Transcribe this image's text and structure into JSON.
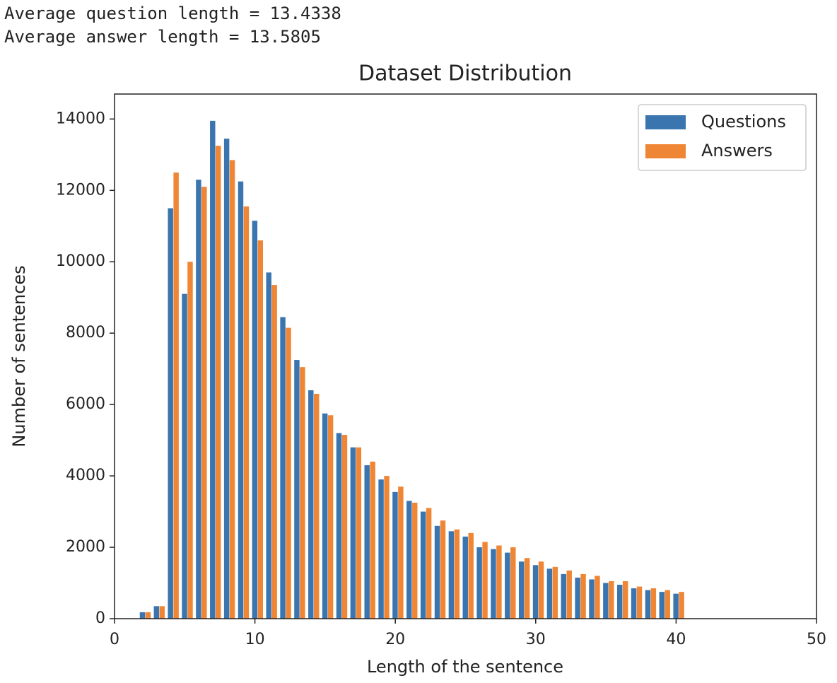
{
  "chart_data": {
    "type": "histogram",
    "annotations": [
      "Average question length = 13.4338",
      "Average answer length = 13.5805"
    ],
    "title": "Dataset Distribution",
    "xlabel": "Length of the sentence",
    "ylabel": "Number of sentences",
    "bins": [
      1.7,
      2.7,
      3.7,
      4.7,
      5.7,
      6.7,
      7.7,
      8.7,
      9.7,
      10.7,
      11.7,
      12.7,
      13.7,
      14.7,
      15.7,
      16.7,
      17.7,
      18.7,
      19.7,
      20.7,
      21.7,
      22.7,
      23.7,
      24.7,
      25.7,
      26.7,
      27.7,
      28.7,
      29.7,
      30.7,
      31.7,
      32.7,
      33.7,
      34.7,
      35.7,
      36.7,
      37.7,
      38.7,
      39.7,
      40.7
    ],
    "series": [
      {
        "name": "Questions",
        "color": "#3b75af",
        "values": [
          180,
          350,
          11500,
          9100,
          12300,
          13950,
          13450,
          12250,
          11150,
          9700,
          8450,
          7250,
          6400,
          5750,
          5200,
          4800,
          4300,
          3900,
          3550,
          3300,
          3000,
          2600,
          2450,
          2300,
          2000,
          1950,
          1850,
          1600,
          1500,
          1400,
          1250,
          1150,
          1100,
          1000,
          950,
          850,
          800,
          750,
          700
        ]
      },
      {
        "name": "Answers",
        "color": "#ef8636",
        "values": [
          180,
          350,
          12500,
          10000,
          12100,
          13250,
          12850,
          11550,
          10600,
          9350,
          8150,
          7050,
          6300,
          5700,
          5150,
          4800,
          4400,
          4000,
          3700,
          3250,
          3100,
          2750,
          2500,
          2400,
          2150,
          2050,
          2000,
          1700,
          1600,
          1450,
          1350,
          1250,
          1200,
          1050,
          1050,
          900,
          850,
          800,
          750
        ]
      }
    ],
    "xlim": [
      0,
      50
    ],
    "xticks": [
      0,
      10,
      20,
      30,
      40,
      50
    ],
    "ylim": [
      0,
      14700
    ],
    "yticks": [
      0,
      2000,
      4000,
      6000,
      8000,
      10000,
      12000,
      14000
    ],
    "legend": "upper right",
    "grid": false
  }
}
